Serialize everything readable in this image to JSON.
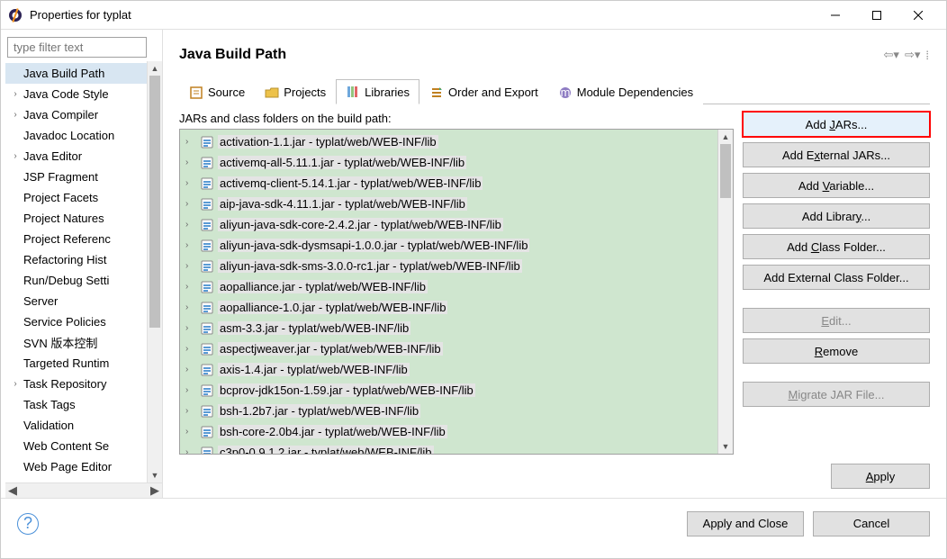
{
  "window": {
    "title": "Properties for typlat"
  },
  "filter_placeholder": "type filter text",
  "sidebar": {
    "items": [
      {
        "label": "Java Build Path",
        "expandable": false,
        "selected": true
      },
      {
        "label": "Java Code Style",
        "expandable": true
      },
      {
        "label": "Java Compiler",
        "expandable": true
      },
      {
        "label": "Javadoc Location",
        "expandable": false
      },
      {
        "label": "Java Editor",
        "expandable": true
      },
      {
        "label": "JSP Fragment",
        "expandable": false
      },
      {
        "label": "Project Facets",
        "expandable": false
      },
      {
        "label": "Project Natures",
        "expandable": false
      },
      {
        "label": "Project Referenc",
        "expandable": false
      },
      {
        "label": "Refactoring Hist",
        "expandable": false
      },
      {
        "label": "Run/Debug Setti",
        "expandable": false
      },
      {
        "label": "Server",
        "expandable": false
      },
      {
        "label": "Service Policies",
        "expandable": false
      },
      {
        "label": "SVN 版本控制",
        "expandable": false
      },
      {
        "label": "Targeted Runtim",
        "expandable": false
      },
      {
        "label": "Task Repository",
        "expandable": true
      },
      {
        "label": "Task Tags",
        "expandable": false
      },
      {
        "label": "Validation",
        "expandable": false
      },
      {
        "label": "Web Content Se",
        "expandable": false
      },
      {
        "label": "Web Page Editor",
        "expandable": false
      }
    ]
  },
  "main": {
    "title": "Java Build Path",
    "tabs": [
      {
        "label": "Source",
        "icon": "source"
      },
      {
        "label": "Projects",
        "icon": "projects"
      },
      {
        "label": "Libraries",
        "icon": "libraries",
        "active": true
      },
      {
        "label": "Order and Export",
        "icon": "order"
      },
      {
        "label": "Module Dependencies",
        "icon": "module"
      }
    ],
    "list_label": "JARs and class folders on the build path:",
    "jars": [
      "activation-1.1.jar - typlat/web/WEB-INF/lib",
      "activemq-all-5.11.1.jar - typlat/web/WEB-INF/lib",
      "activemq-client-5.14.1.jar - typlat/web/WEB-INF/lib",
      "aip-java-sdk-4.11.1.jar - typlat/web/WEB-INF/lib",
      "aliyun-java-sdk-core-2.4.2.jar - typlat/web/WEB-INF/lib",
      "aliyun-java-sdk-dysmsapi-1.0.0.jar - typlat/web/WEB-INF/lib",
      "aliyun-java-sdk-sms-3.0.0-rc1.jar - typlat/web/WEB-INF/lib",
      "aopalliance.jar - typlat/web/WEB-INF/lib",
      "aopalliance-1.0.jar - typlat/web/WEB-INF/lib",
      "asm-3.3.jar - typlat/web/WEB-INF/lib",
      "aspectjweaver.jar - typlat/web/WEB-INF/lib",
      "axis-1.4.jar - typlat/web/WEB-INF/lib",
      "bcprov-jdk15on-1.59.jar - typlat/web/WEB-INF/lib",
      "bsh-1.2b7.jar - typlat/web/WEB-INF/lib",
      "bsh-core-2.0b4.jar - typlat/web/WEB-INF/lib",
      "c3p0-0.9.1.2.jar - typlat/web/WEB-INF/lib"
    ],
    "buttons": {
      "add_jars": "Add JARs...",
      "add_external_jars": "Add External JARs...",
      "add_variable": "Add Variable...",
      "add_library": "Add Library...",
      "add_class_folder": "Add Class Folder...",
      "add_external_class_folder": "Add External Class Folder...",
      "edit": "Edit...",
      "remove": "Remove",
      "migrate": "Migrate JAR File..."
    },
    "apply": "Apply"
  },
  "footer": {
    "apply_close": "Apply and Close",
    "cancel": "Cancel"
  }
}
